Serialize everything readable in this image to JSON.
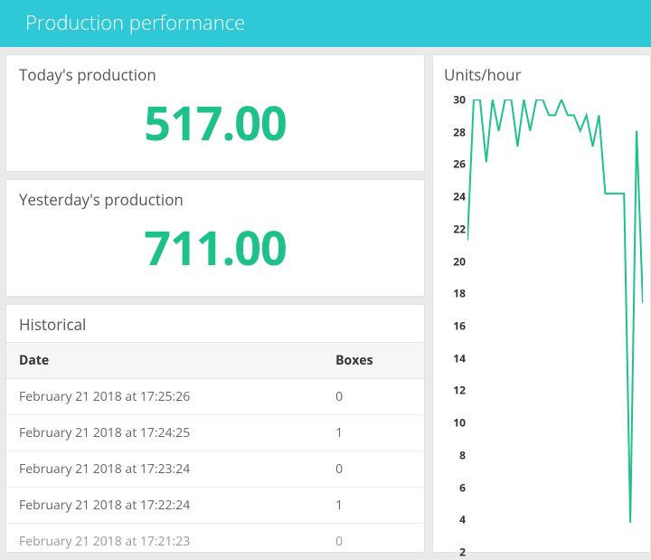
{
  "header": {
    "title": "Production performance"
  },
  "cards": {
    "today": {
      "title": "Today's production",
      "value": "517.00"
    },
    "yesterday": {
      "title": "Yesterday's production",
      "value": "711.00"
    }
  },
  "historical": {
    "title": "Historical",
    "columns": [
      "Date",
      "Boxes"
    ],
    "rows": [
      [
        "February 21 2018 at 17:25:26",
        "0"
      ],
      [
        "February 21 2018 at 17:24:25",
        "1"
      ],
      [
        "February 21 2018 at 17:23:24",
        "0"
      ],
      [
        "February 21 2018 at 17:22:24",
        "1"
      ],
      [
        "February 21 2018 at 17:21:23",
        "0"
      ]
    ]
  },
  "chart": {
    "title": "Units/hour",
    "type": "line",
    "line_color": "#1fc18b",
    "line_width": 2,
    "background_color": "#ffffff",
    "ylim": [
      2,
      30
    ],
    "ytick_step": 2,
    "yticks": [
      30,
      28,
      26,
      24,
      22,
      20,
      18,
      16,
      14,
      12,
      10,
      8,
      6,
      4,
      2
    ],
    "tick_fontsize": 12,
    "tick_fontweight": 700,
    "tick_color": "#333333",
    "values": [
      21,
      30,
      30,
      26,
      30,
      28,
      30,
      30,
      27,
      30,
      28,
      30,
      30,
      29,
      29,
      30,
      29,
      29,
      28,
      29,
      27,
      29,
      24,
      24,
      24,
      24,
      3,
      28,
      17
    ]
  },
  "colors": {
    "header_bg": "#2fc8d6",
    "header_text": "#ffffff",
    "accent_green": "#1fc18b",
    "page_bg": "#eaeaea",
    "card_bg": "#ffffff",
    "card_border": "#e2e2e2",
    "text_muted": "#666666"
  }
}
